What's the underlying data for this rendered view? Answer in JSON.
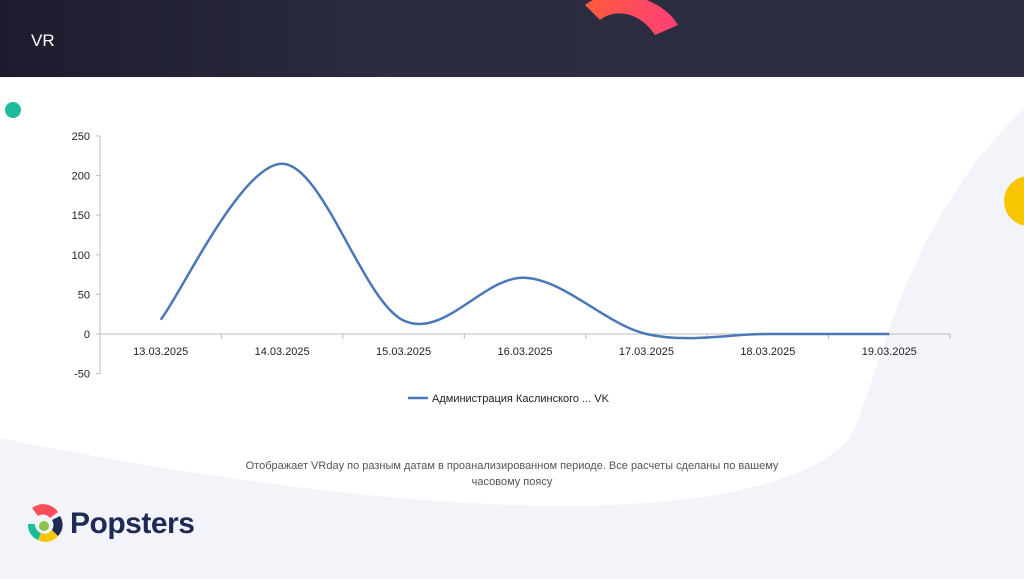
{
  "header": {
    "title": "VR"
  },
  "footer": {
    "description": "Отображает VRday по разным датам в проанализированном периоде. Все расчеты сделаны по вашему часовому поясу"
  },
  "logo": {
    "text": "Popsters"
  },
  "colors": {
    "series": "#4a78b8",
    "header_bg": "#2c2c40",
    "accent_teal": "#1abc9c",
    "accent_yellow": "#f7c600",
    "accent_red": "#ff4d5a"
  },
  "chart_data": {
    "type": "line",
    "smoothed": true,
    "categories": [
      "13.03.2025",
      "14.03.2025",
      "15.03.2025",
      "16.03.2025",
      "17.03.2025",
      "18.03.2025",
      "19.03.2025"
    ],
    "series": [
      {
        "name": "Администрация Каслинского ... VK",
        "values": [
          18,
          215,
          17,
          71,
          0,
          0,
          0
        ]
      }
    ],
    "ylim": [
      -50,
      250
    ],
    "yticks": [
      -50,
      0,
      50,
      100,
      150,
      200,
      250
    ],
    "grid": false,
    "legend": "bottom"
  }
}
